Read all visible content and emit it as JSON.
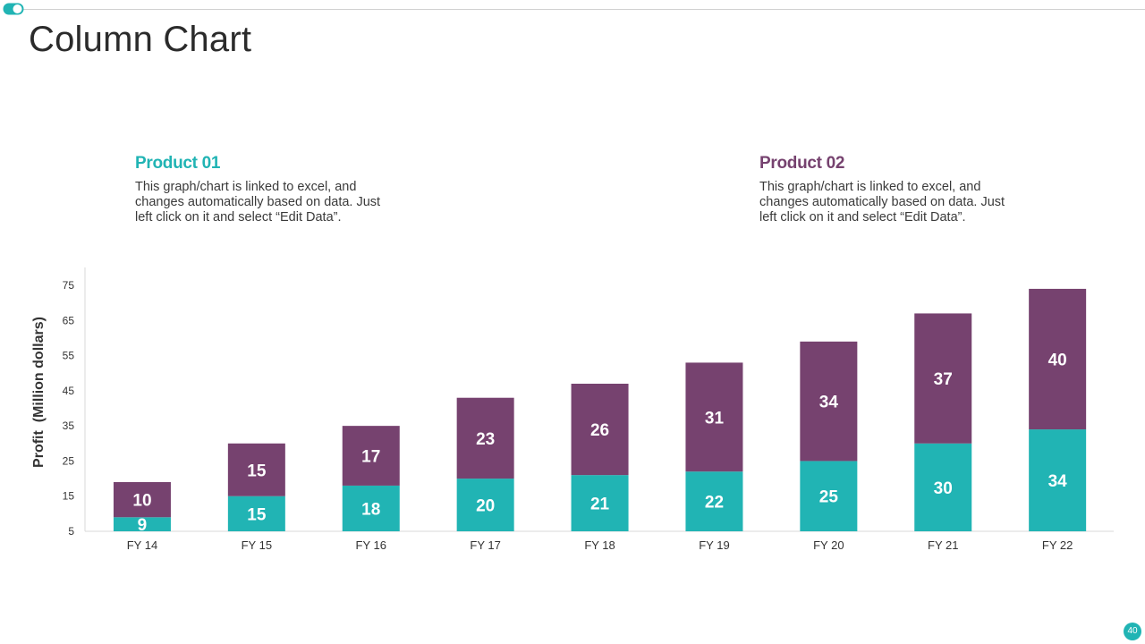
{
  "slide": {
    "title": "Column Chart",
    "page_number": "40",
    "accent_color": "#21b4b4",
    "secondary_color": "#76426f"
  },
  "products": [
    {
      "title": "Product 01",
      "description": "This graph/chart is linked to excel, and changes automatically based on data. Just left click on it and select “Edit Data”."
    },
    {
      "title": "Product 02",
      "description": "This graph/chart is linked to excel, and changes automatically based on data. Just left click on it and select “Edit Data”."
    }
  ],
  "chart_data": {
    "type": "bar",
    "stacked": true,
    "title": "",
    "xlabel": "",
    "ylabel": "Profit  (Million dollars)",
    "ylim": [
      5,
      75
    ],
    "yticks": [
      5,
      15,
      25,
      35,
      45,
      55,
      65,
      75
    ],
    "categories": [
      "FY 14",
      "FY 15",
      "FY 16",
      "FY 17",
      "FY 18",
      "FY 19",
      "FY 20",
      "FY 21",
      "FY 22"
    ],
    "series": [
      {
        "name": "Product 01",
        "color": "#21b4b4",
        "values": [
          9,
          15,
          18,
          20,
          21,
          22,
          25,
          30,
          34
        ]
      },
      {
        "name": "Product 02",
        "color": "#76426f",
        "values": [
          10,
          15,
          17,
          23,
          26,
          31,
          34,
          37,
          40
        ]
      }
    ],
    "grid": false,
    "legend": "none"
  }
}
